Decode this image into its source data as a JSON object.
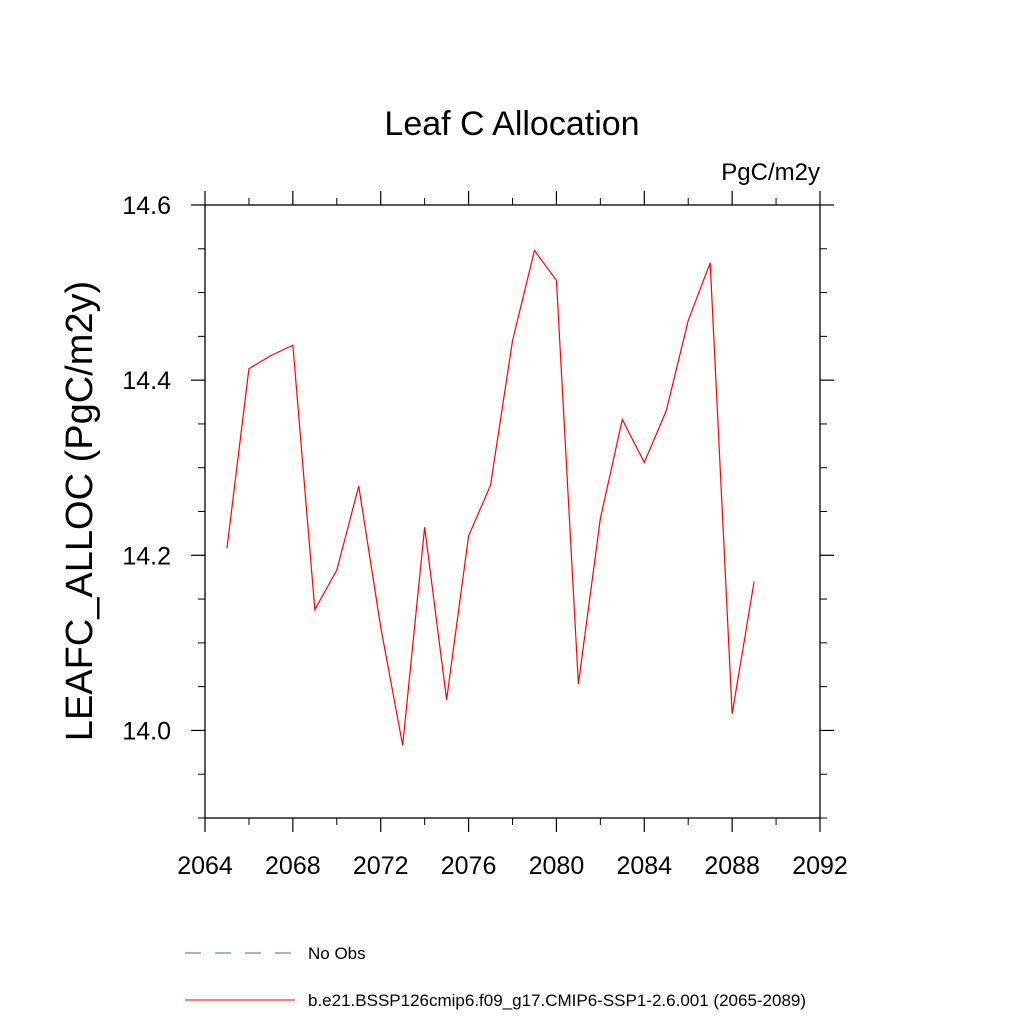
{
  "chart_data": {
    "type": "line",
    "title": "Leaf C Allocation",
    "units_label": "PgC/m2y",
    "xlabel": "",
    "ylabel": "LEAFC_ALLOC  (PgC/m2y)",
    "xlim": [
      2064,
      2092
    ],
    "ylim": [
      13.9,
      14.6
    ],
    "x_ticks": [
      2064,
      2068,
      2072,
      2076,
      2080,
      2084,
      2088,
      2092
    ],
    "x_tick_labels": [
      "2064",
      "2068",
      "2072",
      "2076",
      "2080",
      "2084",
      "2088",
      "2092"
    ],
    "y_ticks": [
      14.0,
      14.2,
      14.4,
      14.6
    ],
    "y_tick_labels": [
      "14.0",
      "14.2",
      "14.4",
      "14.6"
    ],
    "y_minor_step": 0.05,
    "x_minor_step": 2,
    "grid": false,
    "series": [
      {
        "name": "b.e21.BSSP126cmip6.f09_g17.CMIP6-SSP1-2.6.001 (2065-2089)",
        "color": "#ff0000",
        "style": "solid",
        "x": [
          2065,
          2066,
          2067,
          2068,
          2069,
          2070,
          2071,
          2072,
          2073,
          2074,
          2075,
          2076,
          2077,
          2078,
          2079,
          2080,
          2081,
          2082,
          2083,
          2084,
          2085,
          2086,
          2087,
          2088,
          2089
        ],
        "values": [
          14.208,
          14.413,
          14.428,
          14.44,
          14.138,
          14.183,
          14.279,
          14.118,
          13.983,
          14.232,
          14.035,
          14.222,
          14.28,
          14.445,
          14.548,
          14.514,
          14.053,
          14.242,
          14.355,
          14.306,
          14.365,
          14.468,
          14.534,
          14.019,
          14.17
        ]
      }
    ],
    "legend": {
      "placement": "bottom",
      "entries": [
        {
          "label": "No Obs",
          "color": "#4a5fb5",
          "style": "dashed"
        },
        {
          "label": "b.e21.BSSP126cmip6.f09_g17.CMIP6-SSP1-2.6.001 (2065-2089)",
          "color": "#ff0000",
          "style": "solid"
        }
      ]
    }
  }
}
